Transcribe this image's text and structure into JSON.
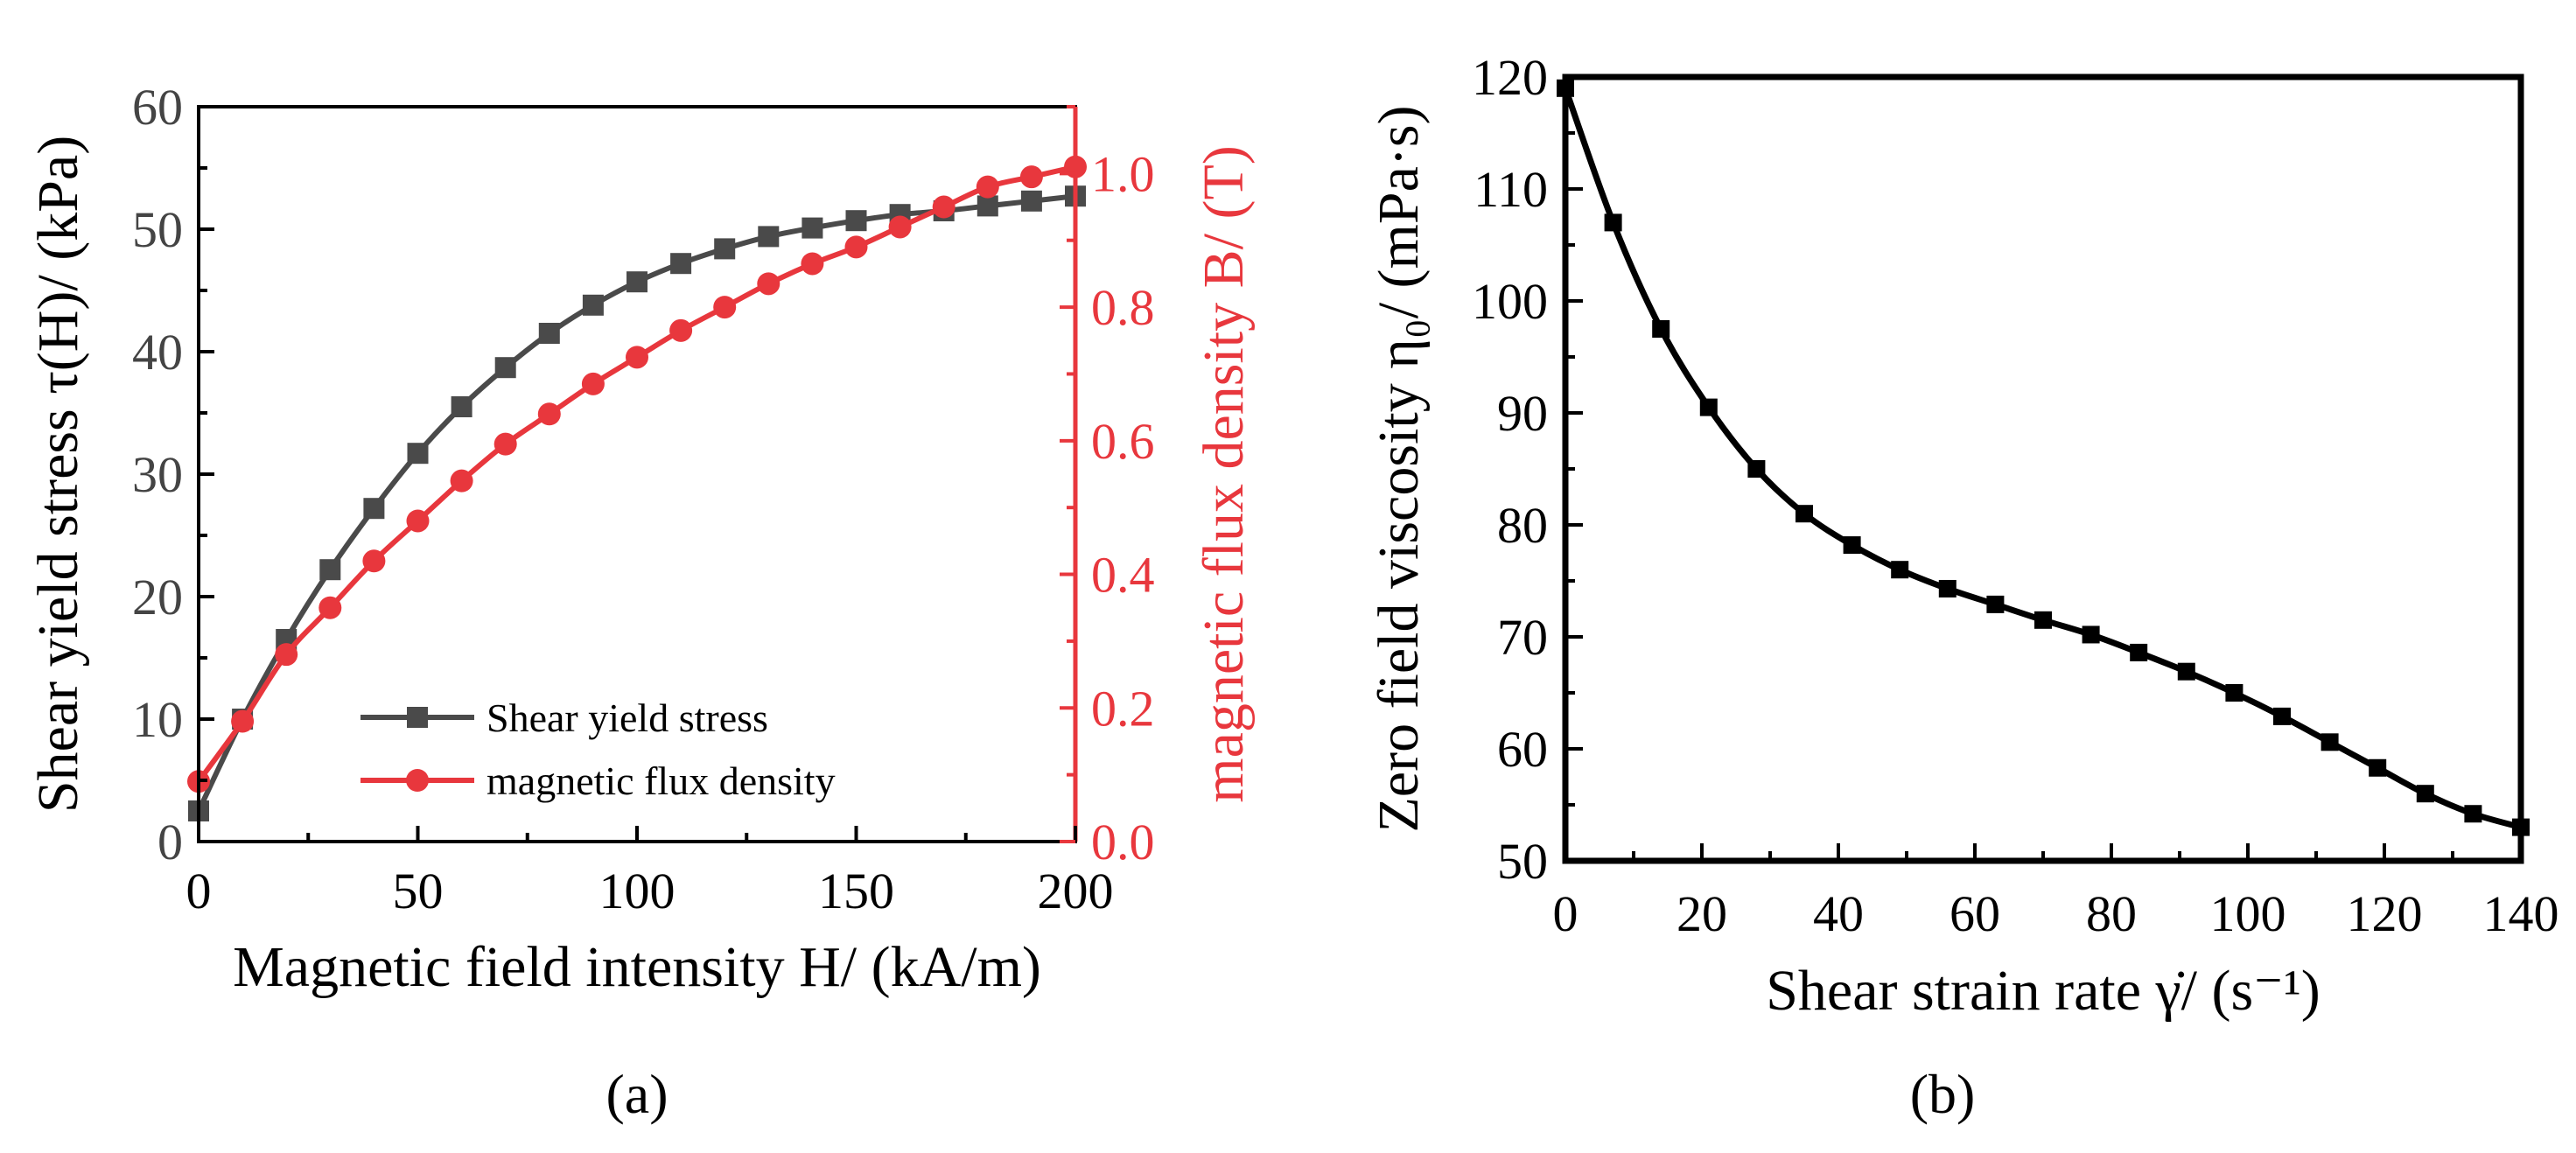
{
  "colors": {
    "shear": "#4a4a4a",
    "flux": "#e8373d",
    "axis_b": "#000000"
  },
  "chart_data": [
    {
      "panel": "a",
      "caption": "(a)",
      "type": "line",
      "xlabel": "Magnetic field intensity H/ (kA/m)",
      "ylabel": "Shear yield stress τ(H)/ (kPa)",
      "y2label": "magnetic flux density B/ (T)",
      "xlim": [
        0,
        200
      ],
      "ylim": [
        0,
        60
      ],
      "y2lim": [
        0,
        1.1
      ],
      "xticks": [
        "0",
        "50",
        "100",
        "150",
        "200"
      ],
      "yticks": [
        "0",
        "10",
        "20",
        "30",
        "40",
        "50",
        "60"
      ],
      "y2ticks": [
        "0.0",
        "0.2",
        "0.4",
        "0.6",
        "0.8",
        "1.0"
      ],
      "legend": [
        "Shear yield stress",
        "magnetic flux density"
      ],
      "series": [
        {
          "name": "Shear yield stress",
          "axis": "left",
          "marker": "square",
          "x": [
            0,
            10,
            20,
            30,
            40,
            50,
            60,
            70,
            80,
            90,
            100,
            110,
            120,
            130,
            140,
            150,
            160,
            170,
            180,
            190,
            200
          ],
          "values": [
            2.5,
            10,
            16.5,
            22.2,
            27.2,
            31.7,
            35.5,
            38.7,
            41.5,
            43.8,
            45.7,
            47.2,
            48.4,
            49.4,
            50.1,
            50.7,
            51.2,
            51.5,
            51.9,
            52.3,
            52.7
          ]
        },
        {
          "name": "magnetic flux density",
          "axis": "right",
          "marker": "circle",
          "x": [
            0,
            10,
            20,
            30,
            40,
            50,
            60,
            70,
            80,
            90,
            100,
            110,
            120,
            130,
            140,
            150,
            160,
            170,
            180,
            190,
            200
          ],
          "values": [
            0.09,
            0.18,
            0.28,
            0.35,
            0.42,
            0.48,
            0.54,
            0.595,
            0.64,
            0.685,
            0.725,
            0.765,
            0.8,
            0.835,
            0.865,
            0.89,
            0.92,
            0.95,
            0.98,
            0.995,
            1.01
          ]
        }
      ]
    },
    {
      "panel": "b",
      "caption": "(b)",
      "type": "line",
      "xlabel": "Shear strain rate γ̇/ (s⁻¹)",
      "ylabel": "Zero field viscosity η₀/ (mPa·s)",
      "xlim": [
        0,
        140
      ],
      "ylim": [
        50,
        120
      ],
      "xticks": [
        "0",
        "20",
        "40",
        "60",
        "80",
        "100",
        "120",
        "140"
      ],
      "yticks": [
        "50",
        "60",
        "70",
        "80",
        "90",
        "100",
        "110",
        "120"
      ],
      "series": [
        {
          "name": "Zero field viscosity",
          "marker": "square",
          "x": [
            0,
            7,
            14,
            21,
            28,
            35,
            42,
            49,
            56,
            63,
            70,
            77,
            84,
            91,
            98,
            105,
            112,
            119,
            126,
            133,
            140
          ],
          "values": [
            119,
            107,
            97.5,
            90.5,
            85,
            81,
            78.2,
            76,
            74.3,
            72.9,
            71.5,
            70.2,
            68.6,
            66.9,
            65,
            62.9,
            60.6,
            58.3,
            56,
            54.2,
            53
          ]
        }
      ]
    }
  ]
}
